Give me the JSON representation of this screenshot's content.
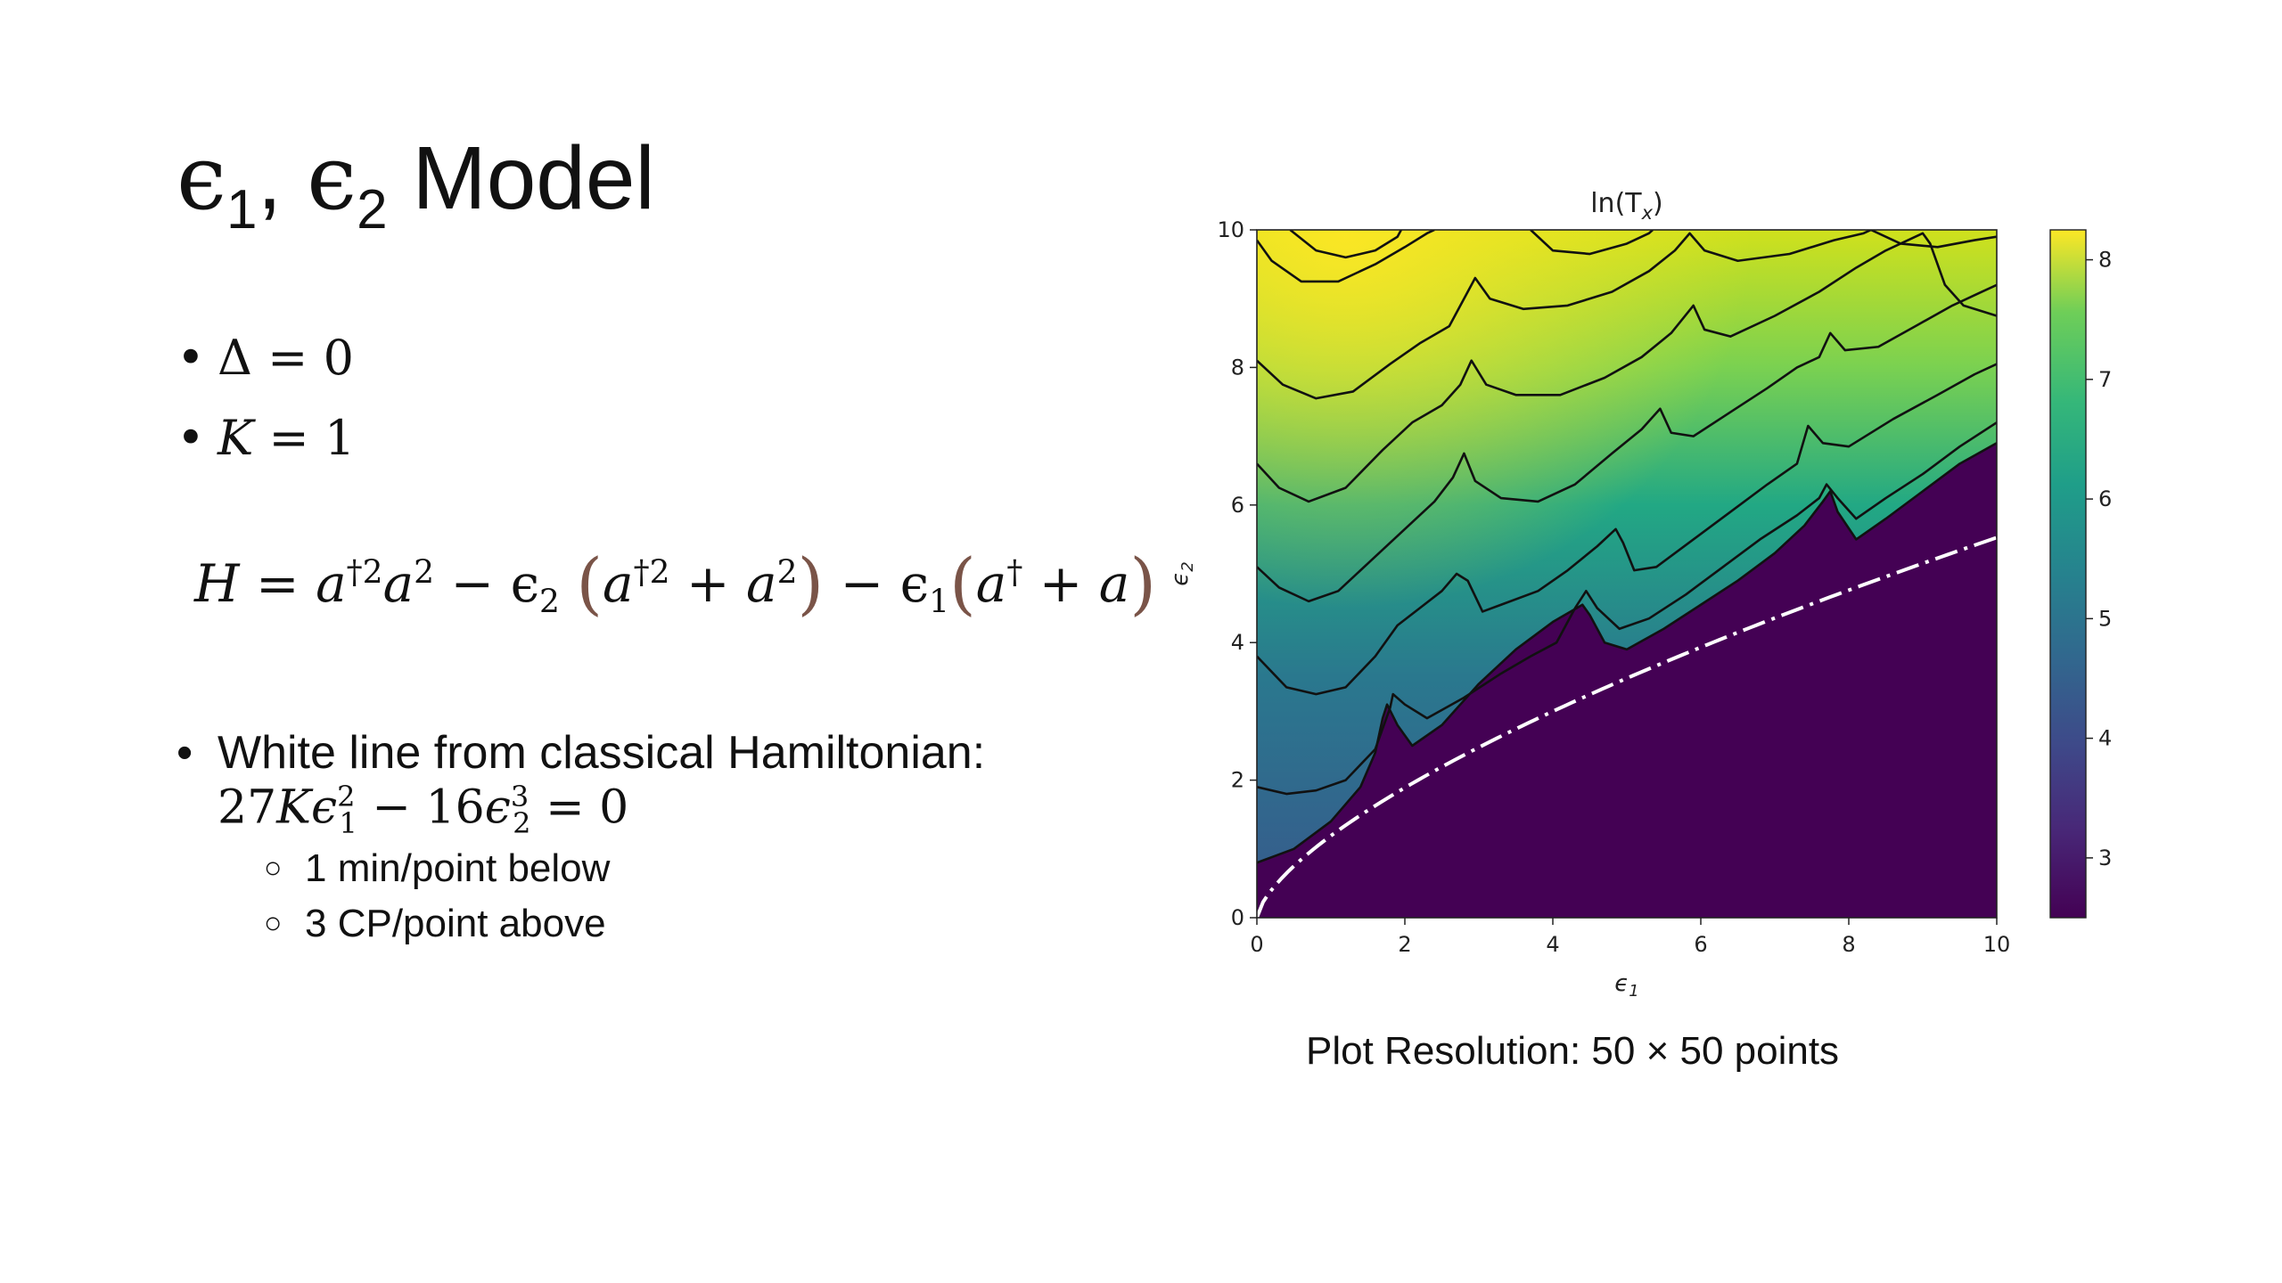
{
  "slide": {
    "title_sym1": "ϵ",
    "title_sub1": "1",
    "title_comma": ",",
    "title_sym2": "ϵ",
    "title_sub2": "2",
    "title_word": "Model",
    "bullet1": {
      "lhs": "Δ",
      "op": "=",
      "rhs": "0"
    },
    "bullet2": {
      "lhs": "K",
      "op": "=",
      "rhs": "1"
    },
    "hamiltonian": {
      "lhs": "H",
      "eq": "=",
      "t1": "a",
      "t1_sup": "†2",
      "t2": "a",
      "t2_sup": "2",
      "minus1": "−",
      "eps2": "ϵ",
      "eps2_sub": "2",
      "lp": "(",
      "t3": "a",
      "t3_sup": "†2",
      "plus1": "+",
      "t4": "a",
      "t4_sup": "2",
      "rp": ")",
      "minus2": "−",
      "eps1": "ϵ",
      "eps1_sub": "1",
      "lp2": "(",
      "t5": "a",
      "t5_sup": "†",
      "plus2": "+",
      "t6": "a",
      "rp2": ")"
    },
    "white_line_text": "White line from classical Hamiltonian:",
    "classical": {
      "c1": "27",
      "k": "K",
      "e1": "ϵ",
      "e1_sub": "1",
      "e1_sup": "2",
      "minus": "−",
      "c2": "16",
      "e2": "ϵ",
      "e2_sub": "2",
      "e2_sup": "3",
      "eq": "=",
      "rhs": "0"
    },
    "sub1": "1 min/point below",
    "sub2": "3 CP/point above",
    "caption": "Plot Resolution: 50 × 50 points"
  },
  "chart_data": {
    "type": "heatmap",
    "title": "ln(T",
    "title_sub": "x",
    "title_close": ")",
    "xlabel": "ϵ",
    "xlabel_sub": "1",
    "ylabel": "ϵ",
    "ylabel_sub": "2",
    "xlim": [
      0,
      10
    ],
    "ylim": [
      0,
      10
    ],
    "x_ticks": [
      "0",
      "2",
      "4",
      "6",
      "8",
      "10"
    ],
    "y_ticks": [
      "0",
      "2",
      "4",
      "6",
      "8",
      "10"
    ],
    "colorbar": {
      "range": [
        2.5,
        8.25
      ],
      "ticks": [
        "3",
        "4",
        "5",
        "6",
        "7",
        "8"
      ],
      "colormap": "viridis"
    },
    "region_below_line_value": 2.55,
    "white_line": {
      "equation": "27 eps1^2 = 16 eps2^3",
      "style": "dash-dot",
      "color": "#ffffff"
    },
    "contours": [
      [
        [
          0,
          0.8
        ],
        [
          0.5,
          1.0
        ],
        [
          1.0,
          1.4
        ],
        [
          1.4,
          1.9
        ],
        [
          1.6,
          2.4
        ],
        [
          1.7,
          2.9
        ],
        [
          1.76,
          3.1
        ],
        [
          1.9,
          2.8
        ],
        [
          2.1,
          2.5
        ],
        [
          2.5,
          2.8
        ],
        [
          3.0,
          3.4
        ],
        [
          3.5,
          3.9
        ],
        [
          4.0,
          4.3
        ],
        [
          4.4,
          4.55
        ],
        [
          4.5,
          4.4
        ],
        [
          4.7,
          4.0
        ],
        [
          5.0,
          3.9
        ],
        [
          5.5,
          4.2
        ],
        [
          6.0,
          4.55
        ],
        [
          6.5,
          4.9
        ],
        [
          7.0,
          5.3
        ],
        [
          7.4,
          5.7
        ],
        [
          7.65,
          6.05
        ],
        [
          7.75,
          6.2
        ],
        [
          7.85,
          5.9
        ],
        [
          8.1,
          5.5
        ],
        [
          8.5,
          5.8
        ],
        [
          9.0,
          6.2
        ],
        [
          9.5,
          6.6
        ],
        [
          10,
          6.9
        ]
      ],
      [
        [
          0,
          1.9
        ],
        [
          0.4,
          1.8
        ],
        [
          0.8,
          1.85
        ],
        [
          1.2,
          2.0
        ],
        [
          1.6,
          2.45
        ],
        [
          1.8,
          3.05
        ],
        [
          1.84,
          3.25
        ],
        [
          2.0,
          3.1
        ],
        [
          2.3,
          2.9
        ],
        [
          2.8,
          3.2
        ],
        [
          3.3,
          3.55
        ],
        [
          3.7,
          3.8
        ],
        [
          4.05,
          4.0
        ],
        [
          4.3,
          4.5
        ],
        [
          4.45,
          4.75
        ],
        [
          4.6,
          4.5
        ],
        [
          4.9,
          4.2
        ],
        [
          5.3,
          4.35
        ],
        [
          5.8,
          4.7
        ],
        [
          6.3,
          5.1
        ],
        [
          6.8,
          5.5
        ],
        [
          7.3,
          5.85
        ],
        [
          7.6,
          6.1
        ],
        [
          7.7,
          6.3
        ],
        [
          7.85,
          6.1
        ],
        [
          8.1,
          5.8
        ],
        [
          8.5,
          6.1
        ],
        [
          9.0,
          6.45
        ],
        [
          9.5,
          6.85
        ],
        [
          10,
          7.2
        ]
      ],
      [
        [
          0,
          3.8
        ],
        [
          0.4,
          3.35
        ],
        [
          0.8,
          3.25
        ],
        [
          1.2,
          3.35
        ],
        [
          1.6,
          3.8
        ],
        [
          1.9,
          4.25
        ],
        [
          2.2,
          4.5
        ],
        [
          2.5,
          4.75
        ],
        [
          2.7,
          5.0
        ],
        [
          2.85,
          4.9
        ],
        [
          3.05,
          4.45
        ],
        [
          3.3,
          4.55
        ],
        [
          3.8,
          4.75
        ],
        [
          4.2,
          5.05
        ],
        [
          4.6,
          5.4
        ],
        [
          4.85,
          5.65
        ],
        [
          4.95,
          5.45
        ],
        [
          5.1,
          5.05
        ],
        [
          5.4,
          5.1
        ],
        [
          5.9,
          5.5
        ],
        [
          6.4,
          5.9
        ],
        [
          6.9,
          6.3
        ],
        [
          7.3,
          6.6
        ],
        [
          7.45,
          7.15
        ],
        [
          7.65,
          6.9
        ],
        [
          8.0,
          6.85
        ],
        [
          8.6,
          7.25
        ],
        [
          9.2,
          7.6
        ],
        [
          9.7,
          7.9
        ],
        [
          10,
          8.05
        ]
      ],
      [
        [
          0,
          5.1
        ],
        [
          0.3,
          4.8
        ],
        [
          0.7,
          4.6
        ],
        [
          1.1,
          4.75
        ],
        [
          1.6,
          5.25
        ],
        [
          2.0,
          5.65
        ],
        [
          2.4,
          6.05
        ],
        [
          2.65,
          6.4
        ],
        [
          2.8,
          6.75
        ],
        [
          2.95,
          6.35
        ],
        [
          3.3,
          6.1
        ],
        [
          3.8,
          6.05
        ],
        [
          4.3,
          6.3
        ],
        [
          4.8,
          6.75
        ],
        [
          5.2,
          7.1
        ],
        [
          5.45,
          7.4
        ],
        [
          5.6,
          7.05
        ],
        [
          5.9,
          7.0
        ],
        [
          6.4,
          7.35
        ],
        [
          6.9,
          7.7
        ],
        [
          7.3,
          8.0
        ],
        [
          7.6,
          8.15
        ],
        [
          7.75,
          8.5
        ],
        [
          7.95,
          8.25
        ],
        [
          8.4,
          8.3
        ],
        [
          8.9,
          8.6
        ],
        [
          9.4,
          8.9
        ],
        [
          9.8,
          9.1
        ],
        [
          10,
          9.2
        ]
      ],
      [
        [
          0,
          6.6
        ],
        [
          0.3,
          6.25
        ],
        [
          0.7,
          6.05
        ],
        [
          1.2,
          6.25
        ],
        [
          1.7,
          6.8
        ],
        [
          2.1,
          7.2
        ],
        [
          2.5,
          7.45
        ],
        [
          2.75,
          7.75
        ],
        [
          2.9,
          8.1
        ],
        [
          3.1,
          7.75
        ],
        [
          3.5,
          7.6
        ],
        [
          4.1,
          7.6
        ],
        [
          4.7,
          7.85
        ],
        [
          5.2,
          8.15
        ],
        [
          5.6,
          8.5
        ],
        [
          5.9,
          8.9
        ],
        [
          6.05,
          8.55
        ],
        [
          6.4,
          8.45
        ],
        [
          7.0,
          8.75
        ],
        [
          7.6,
          9.1
        ],
        [
          8.1,
          9.45
        ],
        [
          8.5,
          9.7
        ],
        [
          8.8,
          9.85
        ],
        [
          9.0,
          9.95
        ],
        [
          9.1,
          9.8
        ],
        [
          9.3,
          9.2
        ],
        [
          9.55,
          8.9
        ],
        [
          10,
          8.75
        ]
      ],
      [
        [
          0,
          8.1
        ],
        [
          0.35,
          7.75
        ],
        [
          0.8,
          7.55
        ],
        [
          1.3,
          7.65
        ],
        [
          1.8,
          8.05
        ],
        [
          2.2,
          8.35
        ],
        [
          2.6,
          8.6
        ],
        [
          2.85,
          9.1
        ],
        [
          2.95,
          9.3
        ],
        [
          3.15,
          9.0
        ],
        [
          3.6,
          8.85
        ],
        [
          4.2,
          8.9
        ],
        [
          4.8,
          9.1
        ],
        [
          5.3,
          9.4
        ],
        [
          5.65,
          9.7
        ],
        [
          5.85,
          9.95
        ],
        [
          6.05,
          9.7
        ],
        [
          6.5,
          9.55
        ],
        [
          7.2,
          9.65
        ],
        [
          7.8,
          9.85
        ],
        [
          8.2,
          9.95
        ],
        [
          8.3,
          10
        ]
      ],
      [
        [
          0,
          9.85
        ],
        [
          0.2,
          9.55
        ],
        [
          0.6,
          9.25
        ],
        [
          1.1,
          9.25
        ],
        [
          1.6,
          9.5
        ],
        [
          2.0,
          9.75
        ],
        [
          2.3,
          9.95
        ],
        [
          2.4,
          10
        ]
      ],
      [
        [
          0.45,
          10
        ],
        [
          0.8,
          9.7
        ],
        [
          1.2,
          9.6
        ],
        [
          1.6,
          9.7
        ],
        [
          1.9,
          9.9
        ],
        [
          1.95,
          10
        ]
      ],
      [
        [
          3.7,
          10
        ],
        [
          4.0,
          9.7
        ],
        [
          4.5,
          9.65
        ],
        [
          5.0,
          9.8
        ],
        [
          5.3,
          9.95
        ],
        [
          5.35,
          10
        ]
      ],
      [
        [
          8.3,
          10
        ],
        [
          8.7,
          9.8
        ],
        [
          9.2,
          9.75
        ],
        [
          9.7,
          9.85
        ],
        [
          10,
          9.9
        ]
      ]
    ]
  }
}
